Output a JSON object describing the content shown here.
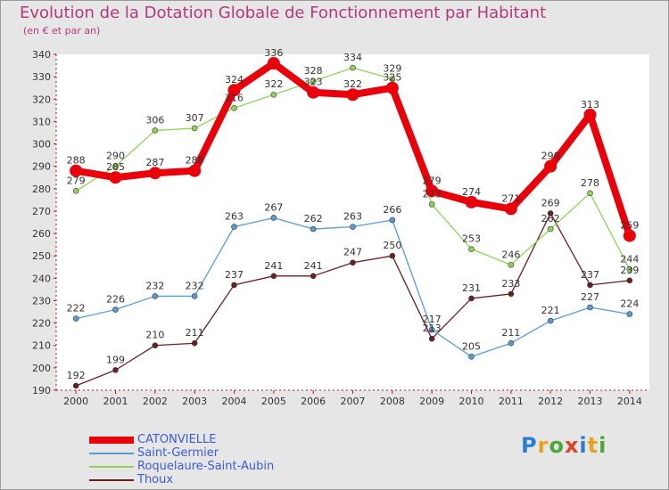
{
  "header": {
    "title": "Evolution de la Dotation Globale de Fonctionnement par Habitant",
    "subtitle": "(en € et par an)"
  },
  "brand": {
    "logo_text": "Proxiti"
  },
  "chart_data": {
    "type": "line",
    "title": "Evolution de la Dotation Globale de Fonctionnement par Habitant",
    "subtitle": "(en € et par an)",
    "xlabel": "",
    "ylabel": "",
    "x": [
      "2000",
      "2001",
      "2002",
      "2003",
      "2004",
      "2005",
      "2006",
      "2007",
      "2008",
      "2009",
      "2010",
      "2011",
      "2012",
      "2013",
      "2014"
    ],
    "ylim": [
      190,
      340
    ],
    "yticks": [
      190,
      200,
      210,
      220,
      230,
      240,
      250,
      260,
      270,
      280,
      290,
      300,
      310,
      320,
      330,
      340
    ],
    "grid": "none",
    "legend_position": "bottom-left",
    "series": [
      {
        "name": "CATONVIELLE",
        "color": "#e8000b",
        "values": [
          288,
          285,
          287,
          288,
          324,
          336,
          323,
          322,
          325,
          279,
          274,
          271,
          290,
          313,
          259
        ]
      },
      {
        "name": "Saint-Germier",
        "color": "#5b9bd5",
        "values": [
          222,
          226,
          232,
          232,
          263,
          267,
          262,
          263,
          266,
          217,
          205,
          211,
          221,
          227,
          224
        ]
      },
      {
        "name": "Roquelaure-Saint-Aubin",
        "color": "#8fd45a",
        "values": [
          279,
          290,
          306,
          307,
          316,
          322,
          328,
          334,
          329,
          273,
          253,
          246,
          262,
          278,
          244
        ]
      },
      {
        "name": "Thoux",
        "color": "#6b1f24",
        "values": [
          192,
          199,
          210,
          211,
          237,
          241,
          241,
          247,
          250,
          213,
          231,
          233,
          269,
          237,
          239
        ]
      }
    ]
  }
}
